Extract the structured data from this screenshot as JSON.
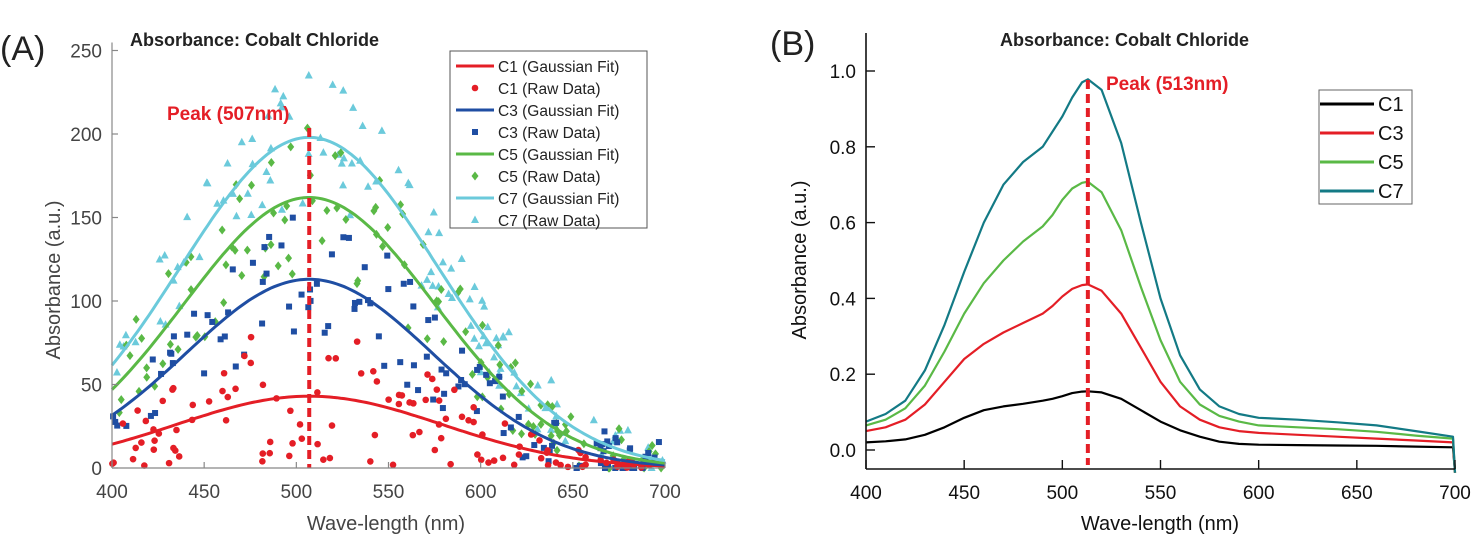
{
  "chart_data": [
    {
      "panel": "(A)",
      "type": "scatter",
      "title": "Absorbance: Cobalt Chloride",
      "xlabel": "Wave-length (nm)",
      "ylabel": "Absorbance (a.u.)",
      "xlim": [
        400,
        700
      ],
      "ylim": [
        0,
        250
      ],
      "xticks": [
        400,
        450,
        500,
        550,
        600,
        650,
        700
      ],
      "yticks": [
        0,
        50,
        100,
        150,
        200,
        250
      ],
      "grid": false,
      "legend_position": "top-right",
      "annotation": {
        "text": "Peak (507nm)",
        "x": 507,
        "color": "#e41e26",
        "style": "dashed-vertical-line"
      },
      "series": [
        {
          "name": "C1 (Gaussian Fit)",
          "kind": "line",
          "color": "#e41e26",
          "peak_x": 507,
          "peak_y": 43,
          "sigma": 72
        },
        {
          "name": "C1 (Raw Data)",
          "kind": "scatter",
          "marker": "circle",
          "color": "#e41e26",
          "peak_y": 43,
          "noise": 45
        },
        {
          "name": "C3 (Gaussian Fit)",
          "kind": "line",
          "color": "#1f4ea3",
          "peak_x": 507,
          "peak_y": 113,
          "sigma": 67
        },
        {
          "name": "C3 (Raw Data)",
          "kind": "scatter",
          "marker": "square",
          "color": "#1f4ea3",
          "peak_y": 113,
          "noise": 40
        },
        {
          "name": "C5 (Gaussian Fit)",
          "kind": "line",
          "color": "#5ab946",
          "peak_x": 507,
          "peak_y": 162,
          "sigma": 68
        },
        {
          "name": "C5 (Raw Data)",
          "kind": "scatter",
          "marker": "diamond",
          "color": "#5ab946",
          "peak_y": 162,
          "noise": 45
        },
        {
          "name": "C7 (Gaussian Fit)",
          "kind": "line",
          "color": "#6bcadb",
          "peak_x": 507,
          "peak_y": 198,
          "sigma": 70
        },
        {
          "name": "C7 (Raw Data)",
          "kind": "scatter",
          "marker": "triangle",
          "color": "#6bcadb",
          "peak_y": 198,
          "noise": 40
        }
      ]
    },
    {
      "panel": "(B)",
      "type": "line",
      "title": "Absorbance: Cobalt Chloride",
      "xlabel": "Wave-length (nm)",
      "ylabel": "Absorbance (a.u.)",
      "xlim": [
        400,
        700
      ],
      "ylim": [
        -0.07,
        1.1
      ],
      "xticks": [
        400,
        450,
        500,
        550,
        600,
        650,
        700
      ],
      "yticks": [
        0.0,
        0.2,
        0.4,
        0.6,
        0.8,
        1.0
      ],
      "ytick_labels": [
        "0.0",
        "0.2",
        "0.4",
        "0.6",
        "0.8",
        "1.0"
      ],
      "grid": false,
      "legend_position": "top-right",
      "annotation": {
        "text": "Peak (513nm)",
        "x": 513,
        "color": "#e41e26",
        "style": "dashed-vertical-line"
      },
      "x": [
        400,
        410,
        420,
        430,
        440,
        450,
        460,
        470,
        480,
        490,
        495,
        500,
        505,
        510,
        513,
        520,
        530,
        540,
        550,
        560,
        570,
        580,
        590,
        600,
        620,
        640,
        660,
        680,
        699,
        700
      ],
      "series": [
        {
          "name": "C1",
          "color": "#000000",
          "values": [
            0.02,
            0.023,
            0.028,
            0.04,
            0.06,
            0.085,
            0.105,
            0.115,
            0.122,
            0.13,
            0.135,
            0.142,
            0.15,
            0.154,
            0.155,
            0.152,
            0.135,
            0.105,
            0.075,
            0.052,
            0.035,
            0.022,
            0.016,
            0.014,
            0.013,
            0.012,
            0.011,
            0.009,
            0.007,
            -0.06
          ]
        },
        {
          "name": "C3",
          "color": "#e41e26",
          "values": [
            0.05,
            0.06,
            0.08,
            0.12,
            0.18,
            0.24,
            0.28,
            0.31,
            0.335,
            0.36,
            0.38,
            0.405,
            0.425,
            0.435,
            0.437,
            0.42,
            0.36,
            0.27,
            0.18,
            0.115,
            0.08,
            0.06,
            0.05,
            0.045,
            0.04,
            0.035,
            0.03,
            0.025,
            0.02,
            -0.06
          ]
        },
        {
          "name": "C5",
          "color": "#5ab946",
          "values": [
            0.065,
            0.08,
            0.11,
            0.17,
            0.26,
            0.36,
            0.44,
            0.5,
            0.55,
            0.59,
            0.62,
            0.66,
            0.69,
            0.705,
            0.708,
            0.68,
            0.58,
            0.43,
            0.29,
            0.18,
            0.12,
            0.09,
            0.075,
            0.065,
            0.06,
            0.055,
            0.048,
            0.038,
            0.03,
            -0.06
          ]
        },
        {
          "name": "C7",
          "color": "#137a85",
          "values": [
            0.075,
            0.095,
            0.13,
            0.21,
            0.33,
            0.47,
            0.6,
            0.7,
            0.76,
            0.8,
            0.84,
            0.88,
            0.93,
            0.97,
            0.978,
            0.95,
            0.81,
            0.6,
            0.4,
            0.25,
            0.16,
            0.115,
            0.095,
            0.085,
            0.08,
            0.073,
            0.065,
            0.05,
            0.035,
            -0.06
          ]
        }
      ]
    }
  ]
}
